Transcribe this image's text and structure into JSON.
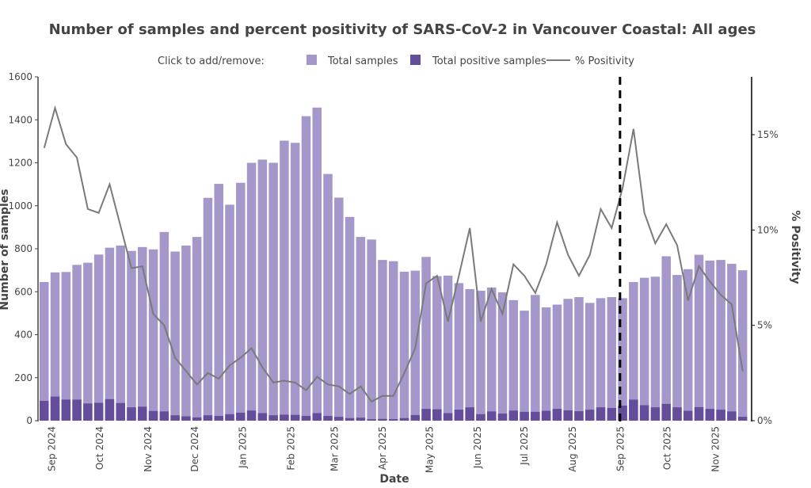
{
  "chart_data": {
    "type": "bar",
    "title": "Number of samples and percent positivity of SARS-CoV-2 in Vancouver Coastal: All ages",
    "legend": {
      "prompt": "Click to add/remove:",
      "placement": "top-center",
      "items": [
        {
          "name": "Total samples",
          "type": "bar",
          "color": "#a597c9"
        },
        {
          "name": "Total positive samples",
          "type": "bar",
          "color": "#644e9c"
        },
        {
          "name": "% Positivity",
          "type": "line",
          "color": "#7a7a7a"
        }
      ]
    },
    "xlabel": "Date",
    "ylabel": "Number of samples",
    "y2label": "% Positivity",
    "ylim": [
      0,
      1600
    ],
    "y2lim": [
      0,
      18
    ],
    "yticks": [
      "0",
      "200",
      "400",
      "600",
      "800",
      "1000",
      "1200",
      "1400",
      "1600"
    ],
    "y2ticks": [
      "0%",
      "5%",
      "10%",
      "15%"
    ],
    "y2tick_values": [
      0,
      5,
      10,
      15
    ],
    "xticks": [
      "Sep 2024",
      "Oct 2024",
      "Nov 2024",
      "Dec 2024",
      "Jan 2025",
      "Feb 2025",
      "Mar 2025",
      "Apr 2025",
      "May 2025",
      "Jun 2025",
      "Jul 2025",
      "Aug 2025",
      "Sep 2025",
      "Oct 2025",
      "Nov 2025"
    ],
    "xtick_positions": [
      1.0,
      5.4,
      9.8,
      14.1,
      18.5,
      22.9,
      26.9,
      31.3,
      35.6,
      40.0,
      44.3,
      48.7,
      53.1,
      57.4,
      61.8
    ],
    "vline_at_index": 53.2,
    "vline_style": "dashed",
    "series": [
      {
        "name": "Total samples",
        "values": [
          645,
          690,
          692,
          725,
          735,
          773,
          805,
          815,
          790,
          808,
          797,
          878,
          787,
          815,
          855,
          1037,
          1102,
          1005,
          1107,
          1200,
          1215,
          1200,
          1303,
          1293,
          1417,
          1457,
          1148,
          1038,
          948,
          855,
          843,
          748,
          742,
          693,
          698,
          762,
          673,
          675,
          640,
          612,
          605,
          620,
          597,
          561,
          512,
          585,
          527,
          540,
          567,
          575,
          548,
          570,
          575,
          570,
          645,
          665,
          670,
          765,
          678,
          705,
          772,
          745,
          748,
          730,
          700
        ]
      },
      {
        "name": "Total positive samples",
        "values": [
          92,
          112,
          98,
          98,
          80,
          83,
          100,
          82,
          62,
          65,
          45,
          43,
          25,
          20,
          15,
          25,
          22,
          30,
          37,
          47,
          35,
          25,
          28,
          27,
          22,
          35,
          22,
          18,
          12,
          14,
          7,
          8,
          7,
          12,
          26,
          55,
          53,
          35,
          51,
          62,
          30,
          43,
          33,
          47,
          41,
          41,
          46,
          55,
          48,
          44,
          51,
          62,
          59,
          70,
          98,
          72,
          62,
          78,
          62,
          46,
          63,
          55,
          51,
          43,
          18
        ]
      },
      {
        "name": "% Positivity",
        "values": [
          14.3,
          16.4,
          14.5,
          13.8,
          11.1,
          10.9,
          12.4,
          10.2,
          8.0,
          8.1,
          5.6,
          5.0,
          3.3,
          2.6,
          1.9,
          2.5,
          2.2,
          2.9,
          3.3,
          3.8,
          2.8,
          2.0,
          2.1,
          2.0,
          1.6,
          2.3,
          1.9,
          1.8,
          1.4,
          1.8,
          1.0,
          1.3,
          1.3,
          2.5,
          3.8,
          7.2,
          7.6,
          5.2,
          7.6,
          10.1,
          5.2,
          6.9,
          5.6,
          8.2,
          7.6,
          6.7,
          8.2,
          10.4,
          8.7,
          7.6,
          8.7,
          11.1,
          10.1,
          12.2,
          15.3,
          10.9,
          9.3,
          10.3,
          9.2,
          6.3,
          8.1,
          7.3,
          6.6,
          6.1,
          2.6
        ]
      }
    ]
  }
}
